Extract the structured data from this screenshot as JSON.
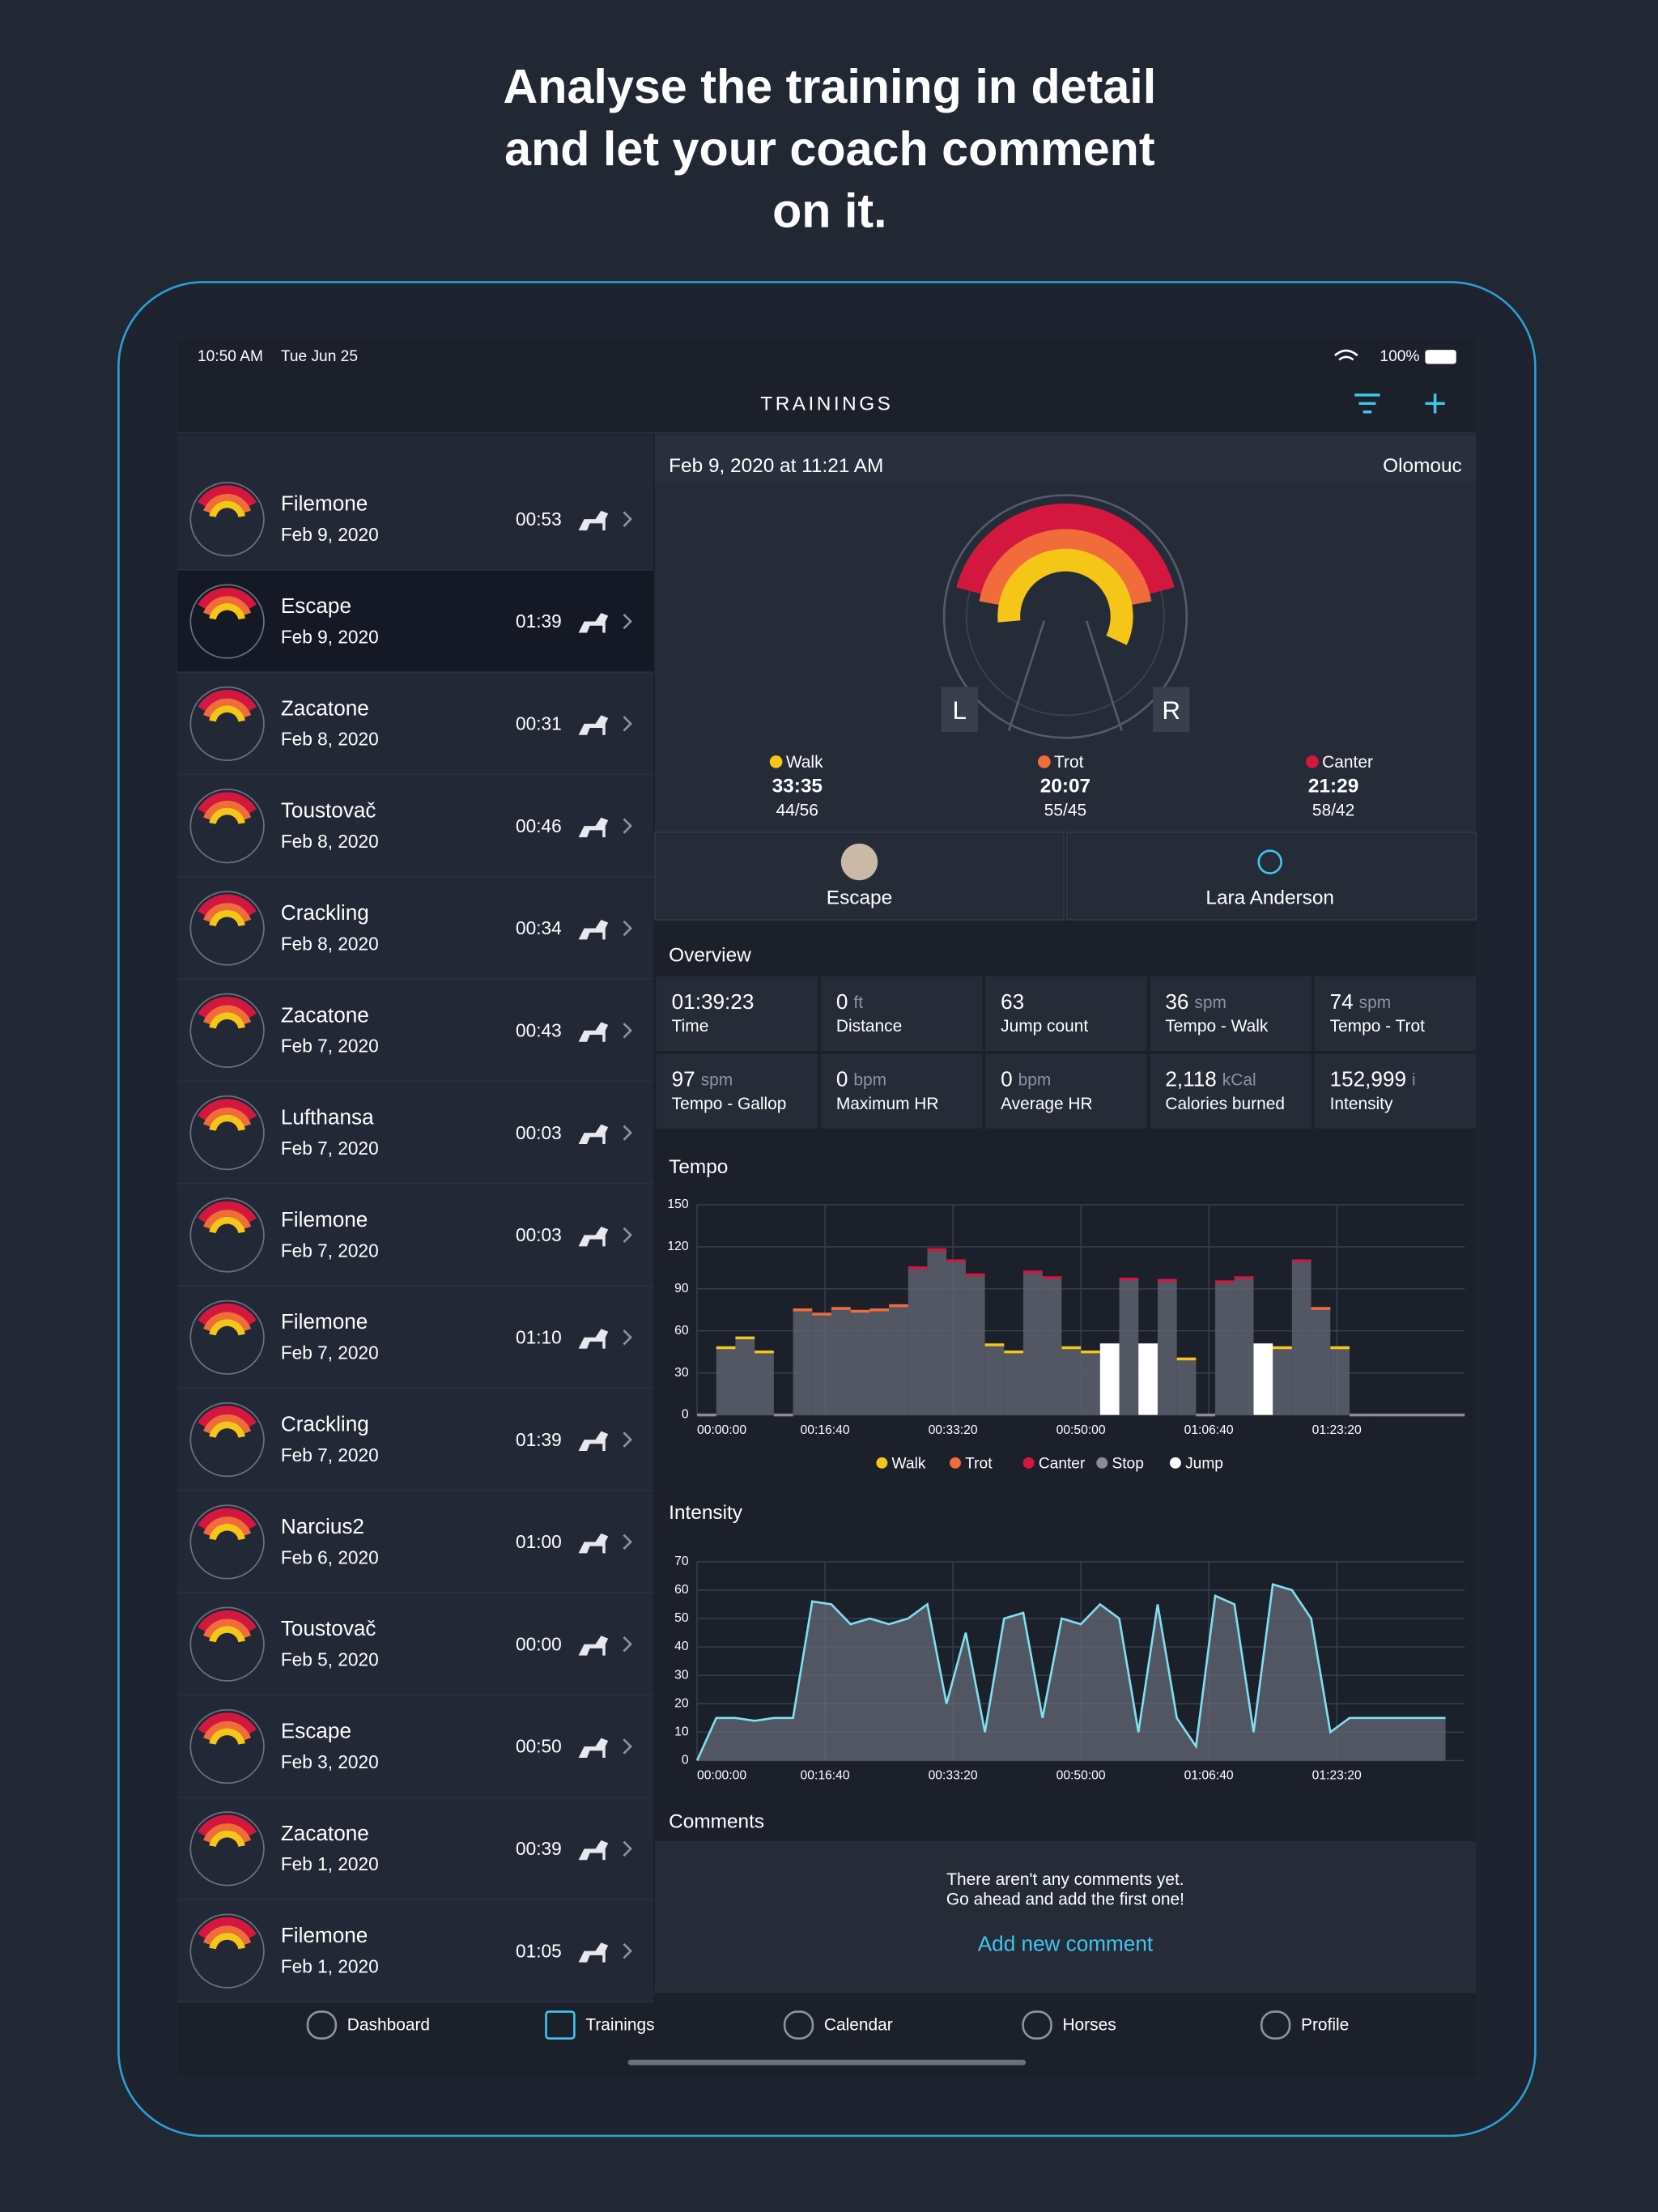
{
  "headline": [
    "Analyse the training in detail",
    "and let your coach comment",
    "on it."
  ],
  "status_bar": {
    "time": "10:50 AM",
    "date": "Tue Jun 25",
    "battery": "100%"
  },
  "nav_title": "TRAININGS",
  "trainings": [
    {
      "name": "Filemone",
      "date": "Feb 9, 2020",
      "duration": "00:53"
    },
    {
      "name": "Escape",
      "date": "Feb 9, 2020",
      "duration": "01:39",
      "selected": true
    },
    {
      "name": "Zacatone",
      "date": "Feb 8, 2020",
      "duration": "00:31"
    },
    {
      "name": "Toustovač",
      "date": "Feb 8, 2020",
      "duration": "00:46"
    },
    {
      "name": "Crackling",
      "date": "Feb 8, 2020",
      "duration": "00:34"
    },
    {
      "name": "Zacatone",
      "date": "Feb 7, 2020",
      "duration": "00:43"
    },
    {
      "name": "Lufthansa",
      "date": "Feb 7, 2020",
      "duration": "00:03"
    },
    {
      "name": "Filemone",
      "date": "Feb 7, 2020",
      "duration": "00:03"
    },
    {
      "name": "Filemone",
      "date": "Feb 7, 2020",
      "duration": "01:10"
    },
    {
      "name": "Crackling",
      "date": "Feb 7, 2020",
      "duration": "01:39"
    },
    {
      "name": "Narcius2",
      "date": "Feb 6, 2020",
      "duration": "01:00"
    },
    {
      "name": "Toustovač",
      "date": "Feb 5, 2020",
      "duration": "00:00"
    },
    {
      "name": "Escape",
      "date": "Feb 3, 2020",
      "duration": "00:50"
    },
    {
      "name": "Zacatone",
      "date": "Feb 1, 2020",
      "duration": "00:39"
    },
    {
      "name": "Filemone",
      "date": "Feb 1, 2020",
      "duration": "01:05"
    }
  ],
  "detail": {
    "datetime": "Feb 9, 2020 at 11:21 AM",
    "location": "Olomouc",
    "gauge_labels": [
      "L",
      "R"
    ],
    "gaits": [
      {
        "name": "Walk",
        "color": "#f5c518",
        "time": "33:35",
        "ratio": "44/56"
      },
      {
        "name": "Trot",
        "color": "#f26b3a",
        "time": "20:07",
        "ratio": "55/45"
      },
      {
        "name": "Canter",
        "color": "#d3173f",
        "time": "21:29",
        "ratio": "58/42"
      }
    ],
    "horse": "Escape",
    "rider": "Lara Anderson",
    "overview_title": "Overview",
    "overview": [
      {
        "value": "01:39:23",
        "label": "Time"
      },
      {
        "value": "0",
        "unit": "ft",
        "label": "Distance"
      },
      {
        "value": "63",
        "label": "Jump count"
      },
      {
        "value": "36",
        "unit": "spm",
        "label": "Tempo - Walk"
      },
      {
        "value": "74",
        "unit": "spm",
        "label": "Tempo - Trot"
      },
      {
        "value": "97",
        "unit": "spm",
        "label": "Tempo - Gallop"
      },
      {
        "value": "0",
        "unit": "bpm",
        "label": "Maximum HR"
      },
      {
        "value": "0",
        "unit": "bpm",
        "label": "Average HR"
      },
      {
        "value": "2,118",
        "unit": "kCal",
        "label": "Calories burned"
      },
      {
        "value": "152,999",
        "unit": "i",
        "label": "Intensity"
      }
    ],
    "tempo": {
      "type": "bar",
      "title": "Tempo",
      "x": [
        0,
        150,
        300,
        450,
        600,
        750,
        900,
        1050,
        1200,
        1350,
        1500,
        1650,
        1800,
        1950,
        2100,
        2250,
        2400,
        2550,
        2700,
        2850,
        3000,
        3150,
        3300,
        3450,
        3600,
        3750,
        3900,
        4050,
        4200,
        4350,
        4500,
        4650,
        4800,
        4950,
        5100,
        5250,
        5400,
        5550,
        5700,
        5850
      ],
      "series": [
        {
          "name": "Walk",
          "color": "#f5c518",
          "values": [
            null,
            48,
            55,
            45,
            null,
            null,
            null,
            null,
            null,
            null,
            null,
            null,
            null,
            null,
            null,
            50,
            45,
            null,
            null,
            48,
            45,
            null,
            null,
            null,
            null,
            40,
            null,
            null,
            null,
            null,
            48,
            null,
            null,
            48,
            null,
            null,
            null,
            null,
            null,
            null
          ]
        },
        {
          "name": "Trot",
          "color": "#f26b3a",
          "values": [
            null,
            null,
            null,
            null,
            null,
            75,
            72,
            76,
            74,
            75,
            78,
            null,
            null,
            null,
            null,
            null,
            null,
            null,
            null,
            null,
            null,
            null,
            null,
            null,
            null,
            null,
            null,
            null,
            null,
            null,
            null,
            null,
            76,
            null,
            null,
            null,
            null,
            null,
            null,
            null
          ]
        },
        {
          "name": "Canter",
          "color": "#d3173f",
          "values": [
            null,
            null,
            null,
            null,
            null,
            null,
            null,
            null,
            null,
            null,
            null,
            105,
            118,
            110,
            100,
            null,
            null,
            102,
            98,
            null,
            null,
            null,
            97,
            null,
            96,
            null,
            null,
            95,
            98,
            null,
            null,
            110,
            null,
            null,
            null,
            null,
            null,
            null,
            null,
            null
          ]
        },
        {
          "name": "Stop",
          "color": "#8a8d94",
          "values": [
            0,
            null,
            null,
            null,
            0,
            null,
            null,
            null,
            null,
            null,
            null,
            null,
            null,
            null,
            null,
            null,
            null,
            null,
            null,
            null,
            null,
            null,
            null,
            null,
            null,
            null,
            0,
            null,
            null,
            null,
            null,
            null,
            null,
            null,
            0,
            0,
            0,
            0,
            0,
            0
          ]
        },
        {
          "name": "Jump",
          "color": "#ffffff",
          "values": [
            null,
            null,
            null,
            null,
            null,
            null,
            null,
            null,
            null,
            null,
            null,
            null,
            null,
            null,
            null,
            null,
            null,
            null,
            null,
            null,
            null,
            50,
            null,
            50,
            null,
            null,
            null,
            null,
            null,
            50,
            null,
            null,
            null,
            null,
            null,
            null,
            null,
            null,
            null,
            null
          ]
        }
      ],
      "xlim": [
        0,
        6000
      ],
      "xticks": [
        {
          "value": 0,
          "label": "00:00:00"
        },
        {
          "value": 1000,
          "label": "00:16:40"
        },
        {
          "value": 2000,
          "label": "00:33:20"
        },
        {
          "value": 3000,
          "label": "00:50:00"
        },
        {
          "value": 4000,
          "label": "01:06:40"
        },
        {
          "value": 5000,
          "label": "01:23:20"
        }
      ],
      "ylim": [
        0,
        150
      ],
      "yticks": [
        0,
        30,
        60,
        90,
        120,
        150
      ],
      "grid": true
    },
    "intensity": {
      "type": "area",
      "title": "Intensity",
      "x": [
        0,
        150,
        300,
        450,
        600,
        750,
        900,
        1050,
        1200,
        1350,
        1500,
        1650,
        1800,
        1950,
        2100,
        2250,
        2400,
        2550,
        2700,
        2850,
        3000,
        3150,
        3300,
        3450,
        3600,
        3750,
        3900,
        4050,
        4200,
        4350,
        4500,
        4650,
        4800,
        4950,
        5100,
        5250,
        5400,
        5550,
        5700,
        5850
      ],
      "series": [
        {
          "name": "Intensity",
          "color": "#7fe0f0",
          "values": [
            0,
            15,
            15,
            14,
            15,
            15,
            56,
            55,
            48,
            50,
            48,
            50,
            55,
            20,
            45,
            10,
            50,
            52,
            15,
            50,
            48,
            55,
            50,
            10,
            55,
            15,
            5,
            58,
            55,
            10,
            62,
            60,
            50,
            10,
            15,
            15,
            15,
            15,
            15,
            15
          ]
        }
      ],
      "xlim": [
        0,
        6000
      ],
      "xticks": [
        {
          "value": 0,
          "label": "00:00:00"
        },
        {
          "value": 1000,
          "label": "00:16:40"
        },
        {
          "value": 2000,
          "label": "00:33:20"
        },
        {
          "value": 3000,
          "label": "00:50:00"
        },
        {
          "value": 4000,
          "label": "01:06:40"
        },
        {
          "value": 5000,
          "label": "01:23:20"
        }
      ],
      "ylim": [
        0,
        70
      ],
      "yticks": [
        0,
        10,
        20,
        30,
        40,
        50,
        60,
        70
      ],
      "grid": true
    },
    "comments_title": "Comments",
    "comments_empty": [
      "There aren't any comments yet.",
      "Go ahead and add the first one!"
    ],
    "add_comment": "Add new comment"
  },
  "tabs": [
    {
      "label": "Dashboard"
    },
    {
      "label": "Trainings",
      "active": true
    },
    {
      "label": "Calendar"
    },
    {
      "label": "Horses"
    },
    {
      "label": "Profile"
    }
  ]
}
